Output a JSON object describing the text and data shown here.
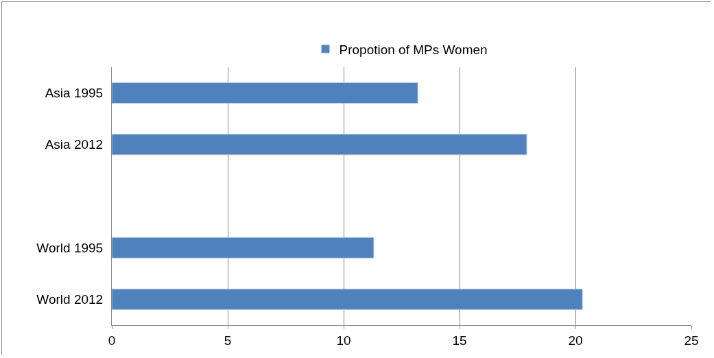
{
  "chart_data": {
    "type": "bar",
    "orientation": "horizontal",
    "categories": [
      "Asia 1995",
      "Asia 2012",
      null,
      "World 1995",
      "World 2012"
    ],
    "series": [
      {
        "name": "Propotion of MPs Women",
        "color": "#4f81bd",
        "values": [
          13.2,
          17.9,
          null,
          11.3,
          20.3
        ]
      }
    ],
    "xlim": [
      0,
      25
    ],
    "xticks": [
      0,
      5,
      10,
      15,
      20,
      25
    ],
    "grid": "x",
    "legend": "top"
  }
}
